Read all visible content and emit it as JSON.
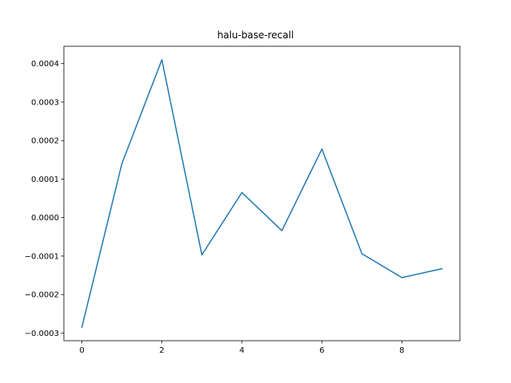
{
  "chart_data": {
    "type": "line",
    "title": "halu-base-recall",
    "xlabel": "",
    "ylabel": "",
    "x": [
      0,
      1,
      2,
      3,
      4,
      5,
      6,
      7,
      8,
      9
    ],
    "series": [
      {
        "values": [
          -0.000285,
          0.00014,
          0.00041,
          -9.7e-05,
          6.5e-05,
          -3.4e-05,
          0.000178,
          -9.4e-05,
          -0.000156,
          -0.000133
        ]
      }
    ],
    "xlim": [
      -0.45,
      9.45
    ],
    "ylim": [
      -0.00032,
      0.000445
    ],
    "x_ticks": [
      0,
      2,
      4,
      6,
      8
    ],
    "x_tick_labels": [
      "0",
      "2",
      "4",
      "6",
      "8"
    ],
    "y_ticks": [
      -0.0003,
      -0.0002,
      -0.0001,
      0.0,
      0.0001,
      0.0002,
      0.0003,
      0.0004
    ],
    "y_tick_labels": [
      "−0.0003",
      "−0.0002",
      "−0.0001",
      "0.0000",
      "0.0001",
      "0.0002",
      "0.0003",
      "0.0004"
    ],
    "grid": false,
    "colors": {
      "line": "#1f77b4",
      "axes": "#000000",
      "background": "#ffffff"
    }
  }
}
